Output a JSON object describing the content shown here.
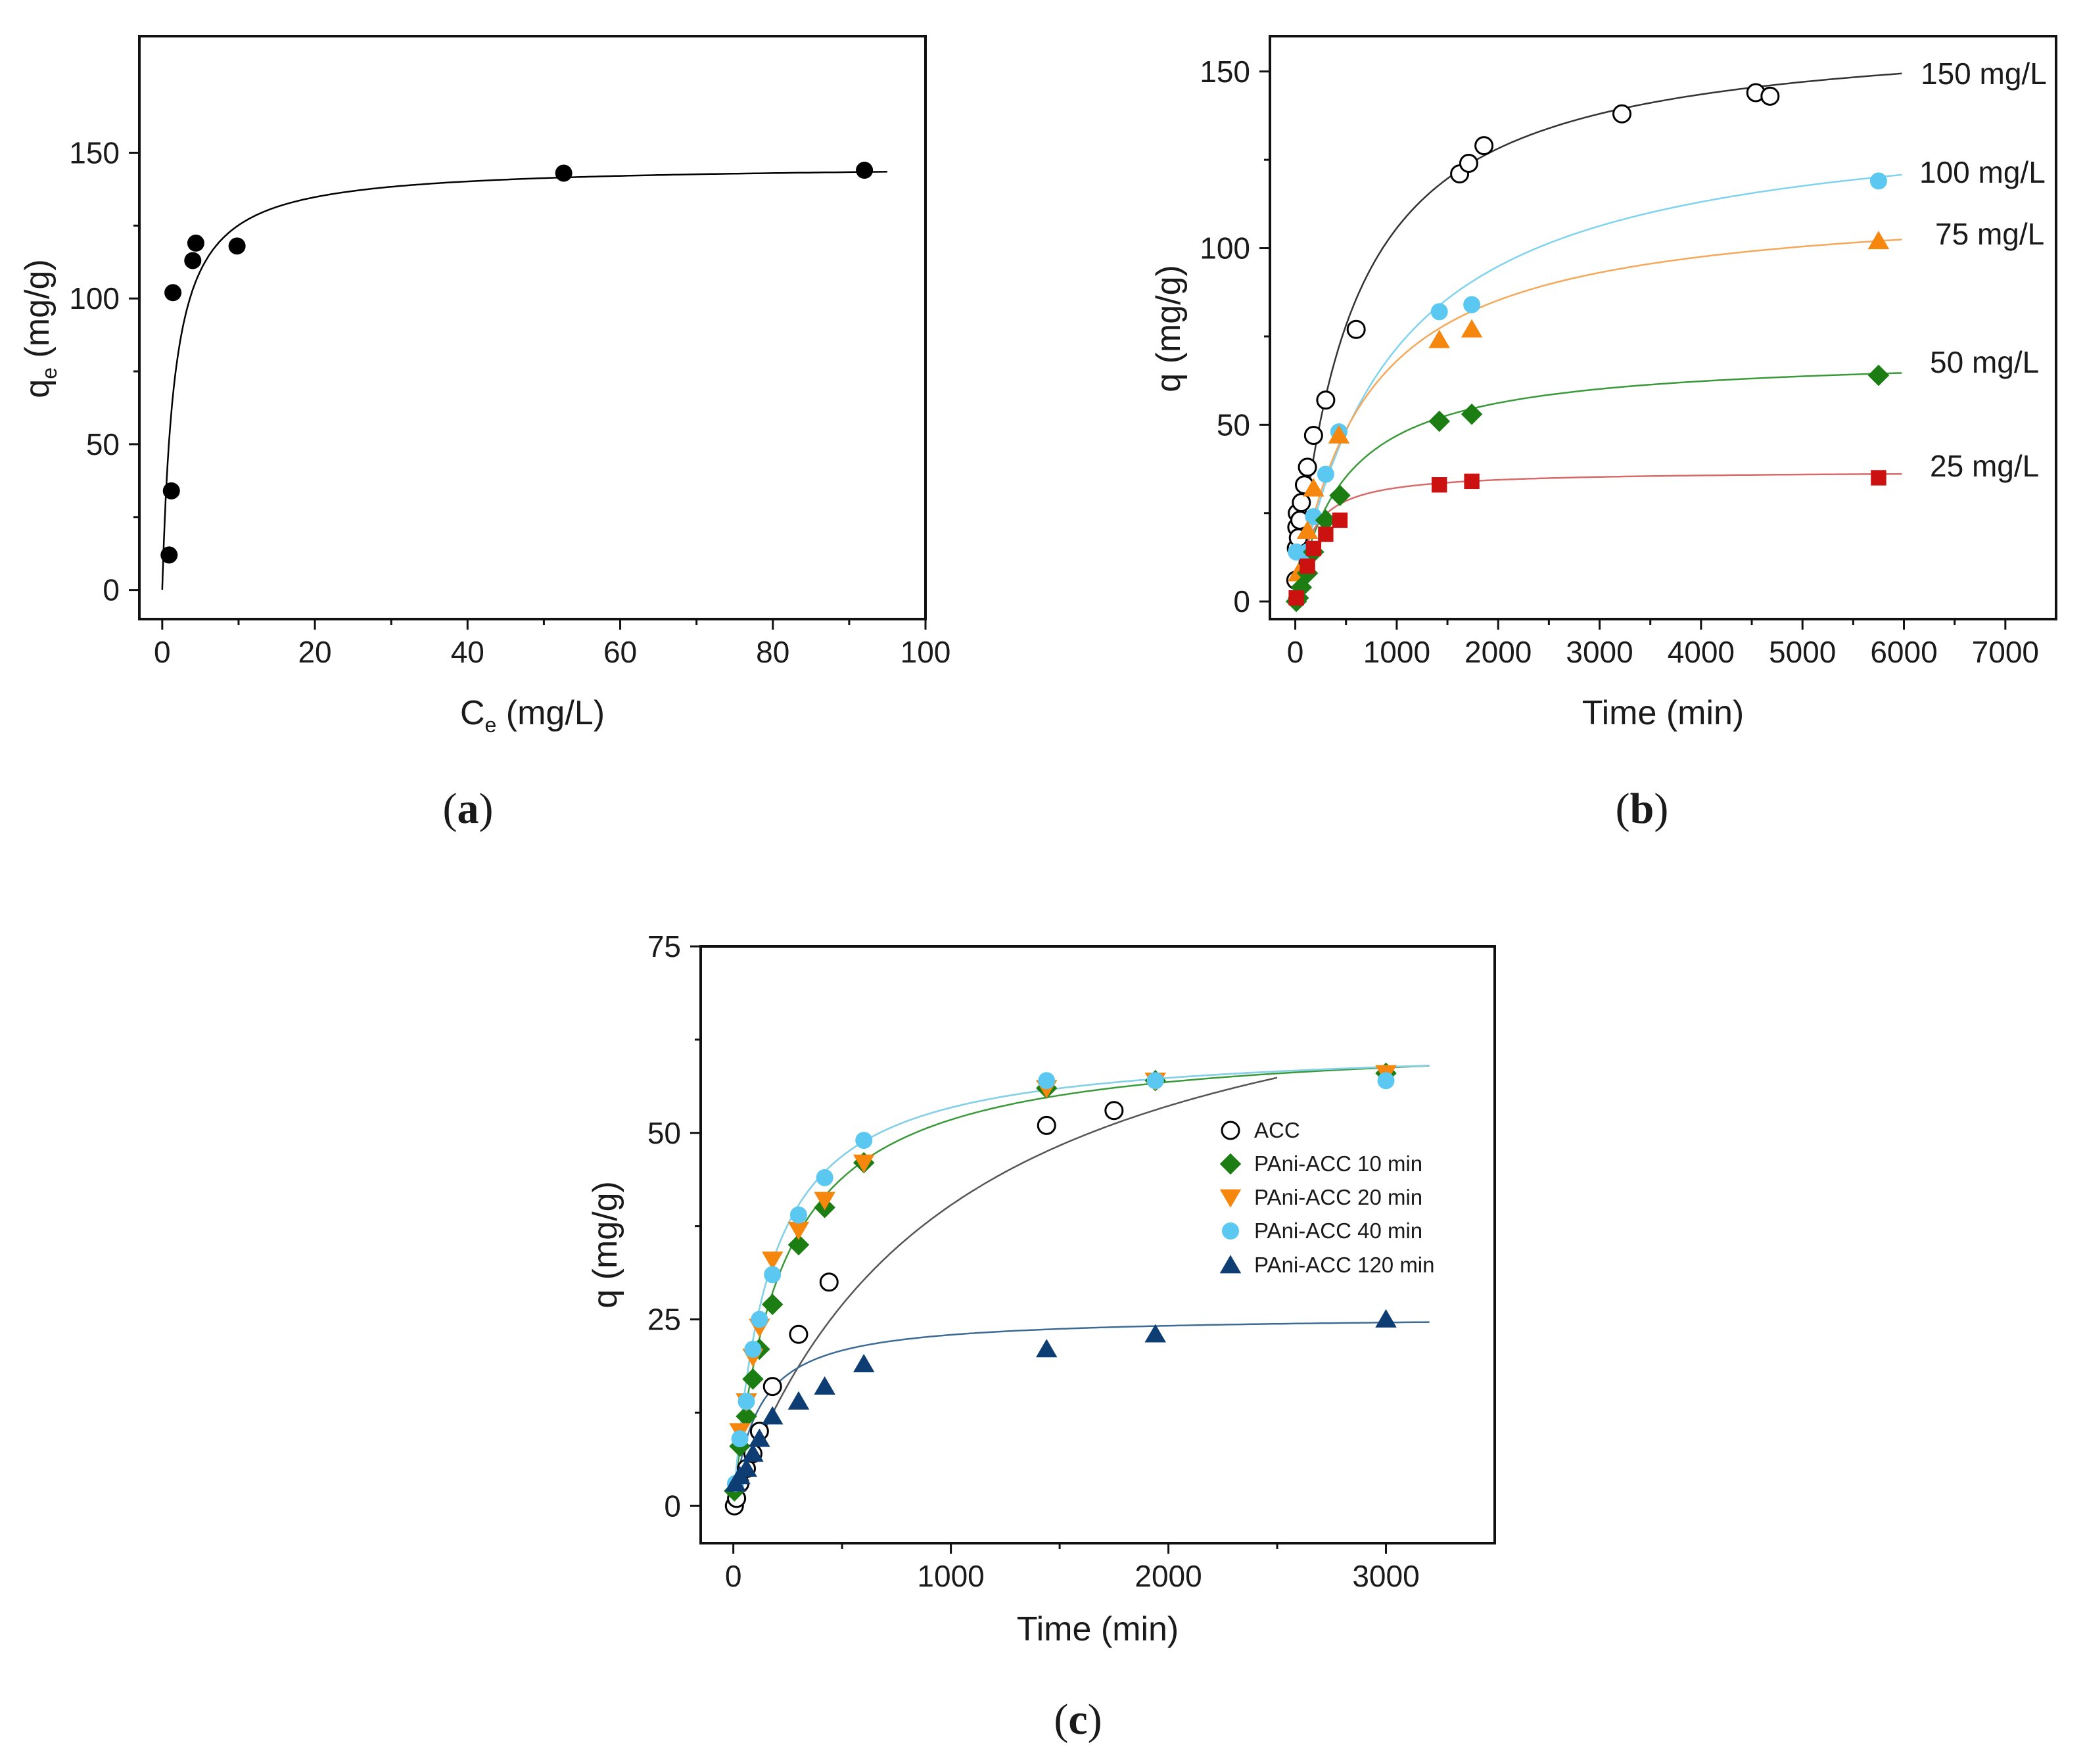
{
  "chart_data": [
    {
      "id": "a",
      "panel_label": "a",
      "type": "scatter",
      "xlabel_main": "C",
      "xlabel_sub": "e",
      "xlabel_tail": " (mg/L)",
      "ylabel_main": "q",
      "ylabel_sub": "e",
      "ylabel_tail": " (mg/g)",
      "xlim": [
        -3,
        100
      ],
      "ylim": [
        -10,
        190
      ],
      "xticks": [
        0,
        20,
        40,
        60,
        80,
        100
      ],
      "yticks": [
        0,
        50,
        100,
        150
      ],
      "series": [
        {
          "name": "data",
          "marker": "circle-filled",
          "color": "#000000",
          "points": [
            [
              0.9,
              12
            ],
            [
              1.2,
              34
            ],
            [
              1.4,
              102
            ],
            [
              4.0,
              113
            ],
            [
              4.4,
              119
            ],
            [
              9.8,
              118
            ],
            [
              52.6,
              143
            ],
            [
              92.0,
              144
            ]
          ],
          "fit": {
            "model": "langmuir",
            "qmax": 146,
            "K": 0.6,
            "xmin": 0,
            "xmax": 95,
            "color": "#000000"
          }
        }
      ]
    },
    {
      "id": "b",
      "panel_label": "b",
      "type": "scatter",
      "xlabel": "Time (min)",
      "ylabel": "q (mg/g)",
      "xlim": [
        -250,
        7500
      ],
      "ylim": [
        -5,
        160
      ],
      "xticks": [
        0,
        1000,
        2000,
        3000,
        4000,
        5000,
        6000,
        7000
      ],
      "yticks": [
        0,
        50,
        100,
        150
      ],
      "series": [
        {
          "name": "150 mg/L",
          "label": "150 mg/L",
          "marker": "circle-open",
          "color": "#000000",
          "points": [
            [
              5,
              6
            ],
            [
              10,
              15
            ],
            [
              15,
              21
            ],
            [
              20,
              25
            ],
            [
              30,
              18
            ],
            [
              45,
              23
            ],
            [
              60,
              28
            ],
            [
              90,
              33
            ],
            [
              120,
              38
            ],
            [
              180,
              47
            ],
            [
              300,
              57
            ],
            [
              600,
              77
            ],
            [
              1620,
              121
            ],
            [
              1710,
              124
            ],
            [
              1860,
              129
            ],
            [
              3220,
              138
            ],
            [
              4540,
              144
            ],
            [
              4680,
              143
            ]
          ],
          "fit": {
            "model": "pso",
            "qe": 163,
            "k": 1.13e-05,
            "xmax": 5980,
            "color": "#333333"
          }
        },
        {
          "name": "100 mg/L",
          "label": "100 mg/L",
          "marker": "circle-filled",
          "color": "#5bc8f2",
          "points": [
            [
              10,
              14
            ],
            [
              120,
              14
            ],
            [
              180,
              24
            ],
            [
              300,
              36
            ],
            [
              430,
              48
            ],
            [
              1420,
              82
            ],
            [
              1740,
              84
            ],
            [
              5750,
              119
            ]
          ],
          "fit": {
            "model": "pso",
            "qe": 140,
            "k": 7.5e-06,
            "xmax": 5980,
            "color": "#7fd3ef"
          }
        },
        {
          "name": "75 mg/L",
          "label": "75 mg/L",
          "marker": "triangle-up",
          "color": "#f5860e",
          "points": [
            [
              30,
              8
            ],
            [
              120,
              20
            ],
            [
              180,
              32
            ],
            [
              430,
              47
            ],
            [
              1420,
              74
            ],
            [
              1740,
              77
            ],
            [
              5750,
              102
            ]
          ],
          "fit": {
            "model": "pso",
            "qe": 114,
            "k": 1.3e-05,
            "xmax": 5980,
            "color": "#f5a75a"
          }
        },
        {
          "name": "50 mg/L",
          "label": "50 mg/L",
          "marker": "diamond",
          "color": "#1b7d12",
          "points": [
            [
              10,
              0
            ],
            [
              30,
              1
            ],
            [
              60,
              4
            ],
            [
              120,
              8
            ],
            [
              180,
              14
            ],
            [
              300,
              23
            ],
            [
              440,
              30
            ],
            [
              1420,
              51
            ],
            [
              1740,
              53
            ],
            [
              5750,
              64
            ]
          ],
          "fit": {
            "model": "pso",
            "qe": 70,
            "k": 2.9e-05,
            "xmax": 5980,
            "color": "#3a9a3a"
          }
        },
        {
          "name": "25 mg/L",
          "label": "25 mg/L",
          "marker": "square",
          "color": "#cc1111",
          "points": [
            [
              10,
              1
            ],
            [
              120,
              10
            ],
            [
              180,
              15
            ],
            [
              300,
              19
            ],
            [
              440,
              23
            ],
            [
              1420,
              33
            ],
            [
              1740,
              34
            ],
            [
              5750,
              35
            ]
          ],
          "fit": {
            "model": "pso",
            "qe": 37,
            "k": 0.00018,
            "xmax": 5980,
            "color": "#d96a6a"
          }
        }
      ]
    },
    {
      "id": "c",
      "panel_label": "c",
      "type": "scatter",
      "xlabel": "Time (min)",
      "ylabel": "q (mg/g)",
      "xlim": [
        -150,
        3500
      ],
      "ylim": [
        -5,
        75
      ],
      "xticks": [
        0,
        1000,
        2000,
        3000
      ],
      "yticks": [
        0,
        25,
        50,
        75
      ],
      "legend_position": "center-right",
      "series": [
        {
          "name": "ACC",
          "marker": "circle-open",
          "color": "#000000",
          "points": [
            [
              5,
              0
            ],
            [
              15,
              1
            ],
            [
              30,
              3
            ],
            [
              60,
              5
            ],
            [
              90,
              7
            ],
            [
              120,
              10
            ],
            [
              180,
              16
            ],
            [
              300,
              23
            ],
            [
              440,
              30
            ],
            [
              1440,
              51
            ],
            [
              1750,
              53
            ]
          ],
          "fit": {
            "model": "pso",
            "qe": 80,
            "k": 1.27e-05,
            "xmax": 2500,
            "color": "#555555"
          }
        },
        {
          "name": "PAni-ACC 10 min",
          "marker": "diamond",
          "color": "#1b7d12",
          "points": [
            [
              5,
              2
            ],
            [
              30,
              8
            ],
            [
              60,
              12
            ],
            [
              90,
              17
            ],
            [
              120,
              21
            ],
            [
              180,
              27
            ],
            [
              300,
              35
            ],
            [
              420,
              40
            ],
            [
              600,
              46
            ],
            [
              1440,
              56
            ],
            [
              1940,
              57
            ],
            [
              3000,
              58
            ]
          ],
          "fit": {
            "model": "pso",
            "qe": 63,
            "k": 7.31e-05,
            "xmax": 3200,
            "color": "#3a9a3a"
          }
        },
        {
          "name": "PAni-ACC 20 min",
          "marker": "triangle-down",
          "color": "#f5860e",
          "points": [
            [
              30,
              10
            ],
            [
              60,
              14
            ],
            [
              90,
              20
            ],
            [
              120,
              24
            ],
            [
              180,
              33
            ],
            [
              300,
              37
            ],
            [
              420,
              41
            ],
            [
              600,
              46
            ],
            [
              1440,
              56
            ],
            [
              1940,
              57
            ],
            [
              3000,
              58
            ]
          ],
          "fit": {
            "model": "pso",
            "qe": 62,
            "k": 0.0001,
            "xmax": 3200,
            "color": "#f5a75a"
          }
        },
        {
          "name": "PAni-ACC 40 min",
          "marker": "circle-filled",
          "color": "#5bc8f2",
          "points": [
            [
              10,
              3
            ],
            [
              30,
              9
            ],
            [
              60,
              14
            ],
            [
              90,
              21
            ],
            [
              120,
              25
            ],
            [
              180,
              31
            ],
            [
              300,
              39
            ],
            [
              420,
              44
            ],
            [
              600,
              49
            ],
            [
              1440,
              57
            ],
            [
              1940,
              57
            ],
            [
              3000,
              57
            ]
          ],
          "fit": {
            "model": "pso",
            "qe": 62,
            "k": 0.0001,
            "xmax": 3200,
            "color": "#7fd3ef"
          }
        },
        {
          "name": "PAni-ACC 120 min",
          "marker": "triangle-up",
          "color": "#0d3d73",
          "points": [
            [
              10,
              3
            ],
            [
              30,
              4
            ],
            [
              60,
              5
            ],
            [
              90,
              7
            ],
            [
              120,
              9
            ],
            [
              180,
              12
            ],
            [
              300,
              14
            ],
            [
              420,
              16
            ],
            [
              600,
              19
            ],
            [
              1440,
              21
            ],
            [
              1940,
              23
            ],
            [
              3000,
              25
            ]
          ],
          "fit": {
            "model": "pso",
            "qe": 25.5,
            "k": 0.00035,
            "xmax": 3200,
            "color": "#3e6b94"
          }
        }
      ]
    }
  ]
}
